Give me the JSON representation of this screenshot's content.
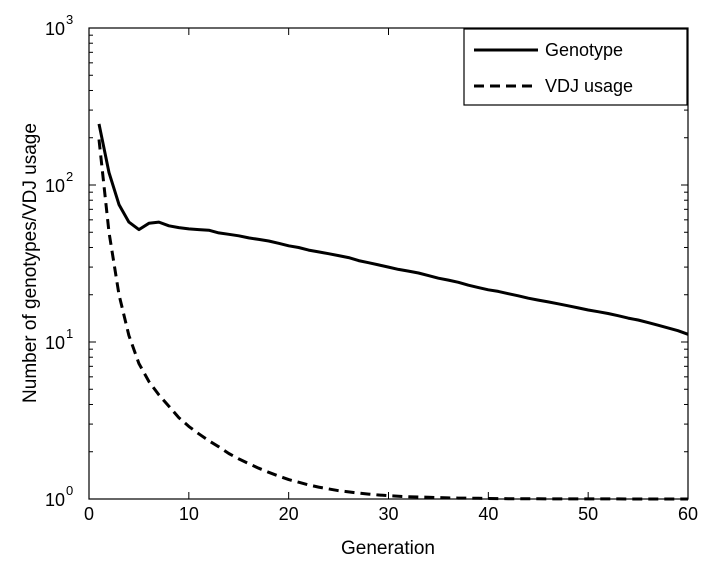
{
  "chart_data": {
    "type": "line",
    "title": "",
    "xlabel": "Generation",
    "ylabel": "Number of genotypes/VDJ usage",
    "xlim": [
      0,
      60
    ],
    "ylim": [
      1,
      1000
    ],
    "y_scale": "log",
    "grid": false,
    "legend_position": "top-right",
    "x_ticks": [
      {
        "value": 0,
        "label": "0"
      },
      {
        "value": 10,
        "label": "10"
      },
      {
        "value": 20,
        "label": "20"
      },
      {
        "value": 30,
        "label": "30"
      },
      {
        "value": 40,
        "label": "40"
      },
      {
        "value": 50,
        "label": "50"
      },
      {
        "value": 60,
        "label": "60"
      }
    ],
    "y_ticks": [
      {
        "value": 1,
        "base": "10",
        "exp": "0"
      },
      {
        "value": 10,
        "base": "10",
        "exp": "1"
      },
      {
        "value": 100,
        "base": "10",
        "exp": "2"
      },
      {
        "value": 1000,
        "base": "10",
        "exp": "3"
      }
    ],
    "series": [
      {
        "name": "Genotype",
        "style": "solid",
        "color": "#000000",
        "x": [
          1,
          2,
          3,
          4,
          5,
          6,
          7,
          8,
          9,
          10,
          11,
          12,
          13,
          14,
          15,
          16,
          17,
          18,
          19,
          20,
          21,
          22,
          23,
          24,
          25,
          26,
          27,
          28,
          29,
          30,
          31,
          32,
          33,
          34,
          35,
          36,
          37,
          38,
          39,
          40,
          41,
          42,
          43,
          44,
          45,
          46,
          47,
          48,
          49,
          50,
          51,
          52,
          53,
          54,
          55,
          56,
          57,
          58,
          59,
          60
        ],
        "values": [
          245,
          120,
          75,
          58,
          52,
          57,
          58,
          55,
          53.5,
          52.5,
          52,
          51.5,
          49.5,
          48.5,
          47.5,
          46,
          45,
          44,
          42.5,
          41,
          40,
          38.5,
          37.5,
          36.5,
          35.5,
          34.5,
          33,
          32,
          31,
          30,
          29,
          28.3,
          27.5,
          26.5,
          25.5,
          24.8,
          24,
          23,
          22.2,
          21.5,
          21,
          20.3,
          19.7,
          19,
          18.5,
          18,
          17.5,
          17,
          16.5,
          16,
          15.6,
          15.2,
          14.7,
          14.2,
          13.8,
          13.3,
          12.8,
          12.3,
          11.8,
          11.2
        ]
      },
      {
        "name": "VDJ usage",
        "style": "dashed",
        "color": "#000000",
        "x": [
          1,
          2,
          3,
          4,
          5,
          6,
          7,
          8,
          9,
          10,
          11,
          12,
          13,
          14,
          15,
          16,
          17,
          18,
          19,
          20,
          21,
          22,
          23,
          24,
          25,
          26,
          27,
          28,
          29,
          30,
          31,
          32,
          33,
          34,
          35,
          36,
          37,
          38,
          39,
          40,
          41,
          42,
          43,
          44,
          45,
          46,
          47,
          48,
          49,
          50,
          51,
          52,
          53,
          54,
          55,
          56,
          57,
          58,
          59,
          60
        ],
        "values": [
          195,
          50,
          20,
          11,
          7.3,
          5.6,
          4.6,
          3.9,
          3.3,
          2.9,
          2.6,
          2.35,
          2.15,
          1.95,
          1.8,
          1.68,
          1.57,
          1.48,
          1.4,
          1.33,
          1.28,
          1.23,
          1.19,
          1.16,
          1.13,
          1.11,
          1.09,
          1.075,
          1.06,
          1.05,
          1.04,
          1.035,
          1.03,
          1.025,
          1.02,
          1.017,
          1.014,
          1.012,
          1.01,
          1.008,
          1.006,
          1.005,
          1.004,
          1.003,
          1.003,
          1.002,
          1.002,
          1.002,
          1.001,
          1.001,
          1.001,
          1.001,
          1.001,
          1.0,
          1.0,
          1.0,
          1.0,
          1.0,
          1.0,
          1.0
        ]
      }
    ]
  }
}
